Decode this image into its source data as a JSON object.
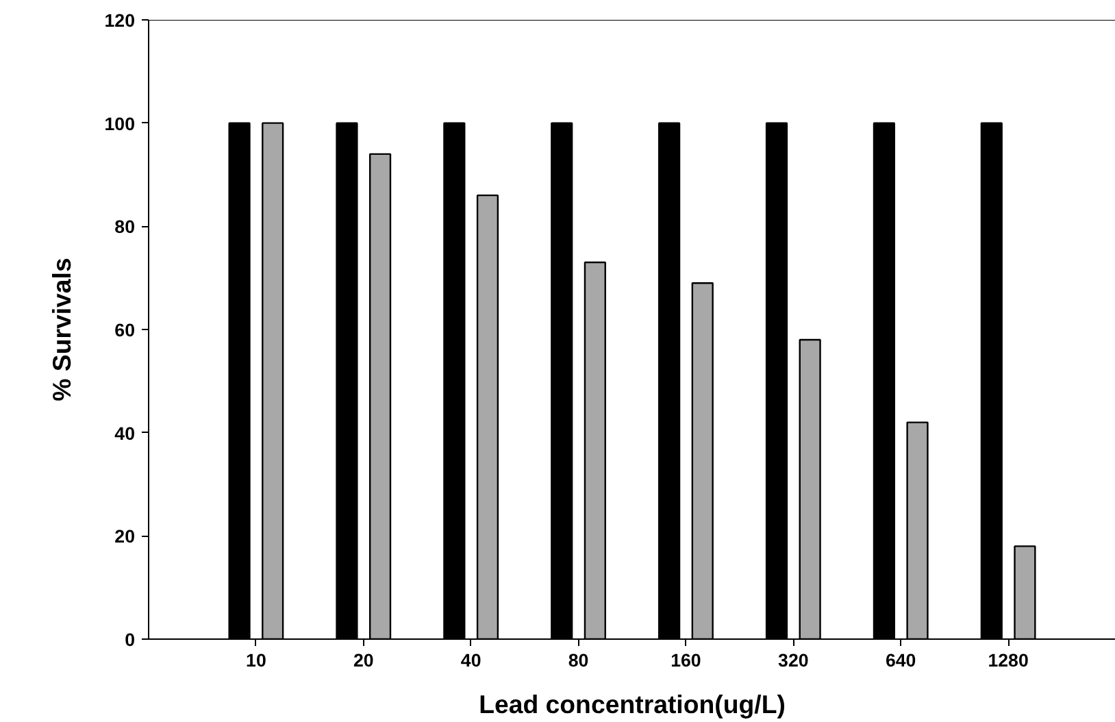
{
  "chart_data": {
    "type": "bar",
    "xlabel": "Lead concentration(ug/L)",
    "ylabel": "% Survivals",
    "categories": [
      "10",
      "20",
      "40",
      "80",
      "160",
      "320",
      "640",
      "1280"
    ],
    "series": [
      {
        "color": "#000000",
        "values": [
          100,
          100,
          100,
          100,
          100,
          100,
          100,
          100
        ]
      },
      {
        "color": "#a8a8a8",
        "values": [
          100,
          94,
          86,
          73,
          69,
          58,
          42,
          18
        ]
      }
    ],
    "ylim": [
      0,
      120
    ],
    "yticks": [
      0,
      20,
      40,
      60,
      80,
      100,
      120
    ],
    "grid": false
  }
}
